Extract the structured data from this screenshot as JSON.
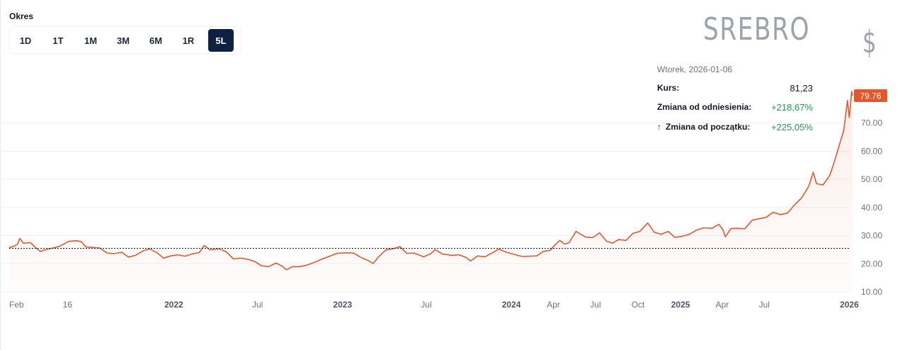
{
  "period": {
    "label": "Okres",
    "options": [
      "1D",
      "1T",
      "1M",
      "3M",
      "6M",
      "1R",
      "5L"
    ],
    "selected": "5L"
  },
  "asset": {
    "name": "SREBRO",
    "currency_symbol": "$"
  },
  "tooltip": {
    "date": "Wtorek, 2026-01-06",
    "rows": [
      {
        "label": "Kurs:",
        "value": "81,23",
        "color": "#111827"
      },
      {
        "label": "Zmiana od odniesienia:",
        "value": "+218,67%",
        "color": "#16a34a"
      },
      {
        "label": "Zmiana od początku:",
        "value": "+225,05%",
        "color": "#16a34a",
        "icon": "arrow-up-icon"
      }
    ]
  },
  "colors": {
    "line": "#e4572e",
    "reference": "#111111",
    "grid": "#eef0f2",
    "badge": "#e4572e",
    "axis_text": "#6b7280"
  },
  "chart_data": {
    "type": "area",
    "title": "",
    "xlabel": "",
    "ylabel": "",
    "ylim": [
      10,
      80
    ],
    "yticks": [
      10,
      20,
      30,
      40,
      50,
      60,
      70
    ],
    "ytick_labels": [
      "10.00",
      "20.00",
      "30.00",
      "40.00",
      "50.00",
      "60.00",
      "70.00"
    ],
    "last_value_label": "79.76",
    "reference_value": 25.5,
    "x_tick_labels": [
      {
        "label": "Feb",
        "date": "2021-02-01",
        "bold": false
      },
      {
        "label": "16",
        "date": "2021-05-16",
        "bold": false
      },
      {
        "label": "2022",
        "date": "2022-01-01",
        "bold": true
      },
      {
        "label": "Jul",
        "date": "2022-07-01",
        "bold": false
      },
      {
        "label": "2023",
        "date": "2023-01-01",
        "bold": true
      },
      {
        "label": "Jul",
        "date": "2023-07-01",
        "bold": false
      },
      {
        "label": "2024",
        "date": "2024-01-01",
        "bold": true
      },
      {
        "label": "Apr",
        "date": "2024-04-01",
        "bold": false
      },
      {
        "label": "Jul",
        "date": "2024-07-01",
        "bold": false
      },
      {
        "label": "Oct",
        "date": "2024-10-01",
        "bold": false
      },
      {
        "label": "2025",
        "date": "2025-01-01",
        "bold": true
      },
      {
        "label": "Apr",
        "date": "2025-04-01",
        "bold": false
      },
      {
        "label": "Jul",
        "date": "2025-07-01",
        "bold": false
      },
      {
        "label": "2026",
        "date": "2026-01-01",
        "bold": true
      }
    ],
    "series": [
      {
        "points": [
          [
            "2021-01-10",
            25.8
          ],
          [
            "2021-01-20",
            26.2
          ],
          [
            "2021-01-28",
            27.0
          ],
          [
            "2021-02-02",
            29.0
          ],
          [
            "2021-02-10",
            27.3
          ],
          [
            "2021-02-25",
            27.5
          ],
          [
            "2021-03-08",
            25.8
          ],
          [
            "2021-03-18",
            24.4
          ],
          [
            "2021-03-30",
            25.0
          ],
          [
            "2021-04-15",
            25.6
          ],
          [
            "2021-04-28",
            26.2
          ],
          [
            "2021-05-10",
            27.2
          ],
          [
            "2021-05-20",
            28.0
          ],
          [
            "2021-06-05",
            28.2
          ],
          [
            "2021-06-15",
            27.8
          ],
          [
            "2021-06-25",
            26.0
          ],
          [
            "2021-07-10",
            25.8
          ],
          [
            "2021-07-25",
            25.6
          ],
          [
            "2021-08-10",
            23.8
          ],
          [
            "2021-08-25",
            23.6
          ],
          [
            "2021-09-10",
            24.1
          ],
          [
            "2021-09-25",
            22.4
          ],
          [
            "2021-10-10",
            23.0
          ],
          [
            "2021-10-25",
            24.5
          ],
          [
            "2021-11-10",
            25.3
          ],
          [
            "2021-11-25",
            24.0
          ],
          [
            "2021-12-10",
            22.0
          ],
          [
            "2021-12-25",
            22.8
          ],
          [
            "2022-01-10",
            23.2
          ],
          [
            "2022-01-25",
            22.7
          ],
          [
            "2022-02-10",
            23.5
          ],
          [
            "2022-02-25",
            24.0
          ],
          [
            "2022-03-08",
            26.5
          ],
          [
            "2022-03-20",
            25.0
          ],
          [
            "2022-04-10",
            25.3
          ],
          [
            "2022-04-25",
            24.2
          ],
          [
            "2022-05-10",
            21.7
          ],
          [
            "2022-05-25",
            22.0
          ],
          [
            "2022-06-10",
            21.6
          ],
          [
            "2022-06-25",
            20.8
          ],
          [
            "2022-07-10",
            19.3
          ],
          [
            "2022-07-25",
            19.0
          ],
          [
            "2022-08-10",
            20.3
          ],
          [
            "2022-08-25",
            19.0
          ],
          [
            "2022-09-01",
            17.9
          ],
          [
            "2022-09-15",
            19.0
          ],
          [
            "2022-09-30",
            19.0
          ],
          [
            "2022-10-15",
            19.5
          ],
          [
            "2022-11-01",
            20.5
          ],
          [
            "2022-11-15",
            21.5
          ],
          [
            "2022-12-01",
            22.5
          ],
          [
            "2022-12-20",
            23.7
          ],
          [
            "2023-01-10",
            23.9
          ],
          [
            "2023-01-25",
            23.8
          ],
          [
            "2023-02-10",
            22.2
          ],
          [
            "2023-02-25",
            21.2
          ],
          [
            "2023-03-08",
            20.1
          ],
          [
            "2023-03-20",
            22.5
          ],
          [
            "2023-04-05",
            25.0
          ],
          [
            "2023-04-20",
            25.3
          ],
          [
            "2023-05-05",
            26.1
          ],
          [
            "2023-05-20",
            23.7
          ],
          [
            "2023-06-05",
            23.8
          ],
          [
            "2023-06-25",
            22.5
          ],
          [
            "2023-07-10",
            23.5
          ],
          [
            "2023-07-20",
            25.0
          ],
          [
            "2023-08-05",
            23.5
          ],
          [
            "2023-08-25",
            23.0
          ],
          [
            "2023-09-10",
            23.2
          ],
          [
            "2023-09-25",
            22.3
          ],
          [
            "2023-10-05",
            21.0
          ],
          [
            "2023-10-20",
            22.8
          ],
          [
            "2023-11-05",
            22.5
          ],
          [
            "2023-11-20",
            23.8
          ],
          [
            "2023-12-05",
            25.2
          ],
          [
            "2023-12-20",
            24.2
          ],
          [
            "2024-01-10",
            23.2
          ],
          [
            "2024-01-25",
            22.6
          ],
          [
            "2024-02-10",
            22.7
          ],
          [
            "2024-02-25",
            22.8
          ],
          [
            "2024-03-10",
            24.4
          ],
          [
            "2024-03-25",
            24.8
          ],
          [
            "2024-04-05",
            26.8
          ],
          [
            "2024-04-15",
            28.3
          ],
          [
            "2024-04-25",
            27.0
          ],
          [
            "2024-05-05",
            27.5
          ],
          [
            "2024-05-20",
            31.5
          ],
          [
            "2024-05-30",
            30.5
          ],
          [
            "2024-06-10",
            29.5
          ],
          [
            "2024-06-25",
            29.3
          ],
          [
            "2024-07-10",
            31.0
          ],
          [
            "2024-07-25",
            28.0
          ],
          [
            "2024-08-07",
            27.3
          ],
          [
            "2024-08-20",
            28.6
          ],
          [
            "2024-09-05",
            28.3
          ],
          [
            "2024-09-20",
            30.8
          ],
          [
            "2024-10-05",
            31.5
          ],
          [
            "2024-10-22",
            34.5
          ],
          [
            "2024-11-05",
            31.2
          ],
          [
            "2024-11-20",
            30.5
          ],
          [
            "2024-12-05",
            31.5
          ],
          [
            "2024-12-20",
            29.4
          ],
          [
            "2025-01-05",
            29.8
          ],
          [
            "2025-01-20",
            30.5
          ],
          [
            "2025-02-05",
            32.0
          ],
          [
            "2025-02-20",
            32.8
          ],
          [
            "2025-03-10",
            32.6
          ],
          [
            "2025-03-25",
            34.0
          ],
          [
            "2025-04-03",
            32.0
          ],
          [
            "2025-04-08",
            29.6
          ],
          [
            "2025-04-20",
            32.5
          ],
          [
            "2025-05-05",
            32.6
          ],
          [
            "2025-05-20",
            32.4
          ],
          [
            "2025-06-05",
            35.5
          ],
          [
            "2025-06-20",
            36.0
          ],
          [
            "2025-07-05",
            36.5
          ],
          [
            "2025-07-20",
            38.3
          ],
          [
            "2025-08-05",
            37.5
          ],
          [
            "2025-08-20",
            38.0
          ],
          [
            "2025-09-05",
            41.0
          ],
          [
            "2025-09-20",
            43.5
          ],
          [
            "2025-10-05",
            47.5
          ],
          [
            "2025-10-15",
            52.5
          ],
          [
            "2025-10-22",
            48.5
          ],
          [
            "2025-11-05",
            48.0
          ],
          [
            "2025-11-20",
            51.5
          ],
          [
            "2025-12-01",
            57.0
          ],
          [
            "2025-12-10",
            62.0
          ],
          [
            "2025-12-20",
            67.5
          ],
          [
            "2025-12-28",
            78.0
          ],
          [
            "2026-01-01",
            72.0
          ],
          [
            "2026-01-06",
            81.23
          ],
          [
            "2026-01-08",
            79.76
          ]
        ]
      }
    ]
  }
}
